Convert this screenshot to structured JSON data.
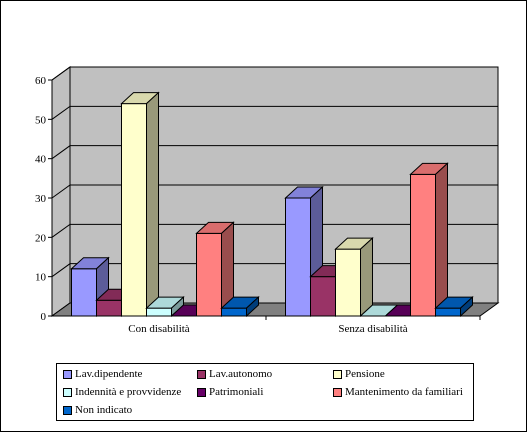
{
  "chart_data": {
    "type": "bar",
    "three_d": true,
    "categories": [
      "Con disabilità",
      "Senza disabilità"
    ],
    "ylim": [
      0,
      60
    ],
    "yticks": [
      "0",
      "10",
      "20",
      "30",
      "40",
      "50",
      "60"
    ],
    "grid": true,
    "legend_position": "bottom",
    "series": [
      {
        "name": "Lav.dipendente",
        "values": [
          12,
          30
        ],
        "color": "#9999FF"
      },
      {
        "name": "Lav.autonomo",
        "values": [
          4,
          10
        ],
        "color": "#993366"
      },
      {
        "name": "Pensione",
        "values": [
          54,
          17
        ],
        "color": "#FFFFCC"
      },
      {
        "name": "Indennità e provvidenze",
        "values": [
          2,
          0
        ],
        "color": "#CCFFFF"
      },
      {
        "name": "Patrimoniali",
        "values": [
          0,
          0
        ],
        "color": "#660066"
      },
      {
        "name": "Mantenimento da familiari",
        "values": [
          21,
          36
        ],
        "color": "#FF8080"
      },
      {
        "name": "Non indicato",
        "values": [
          2,
          2
        ],
        "color": "#0066CC"
      }
    ],
    "wall_color": "#C0C0C0",
    "floor_color": "#808080"
  }
}
